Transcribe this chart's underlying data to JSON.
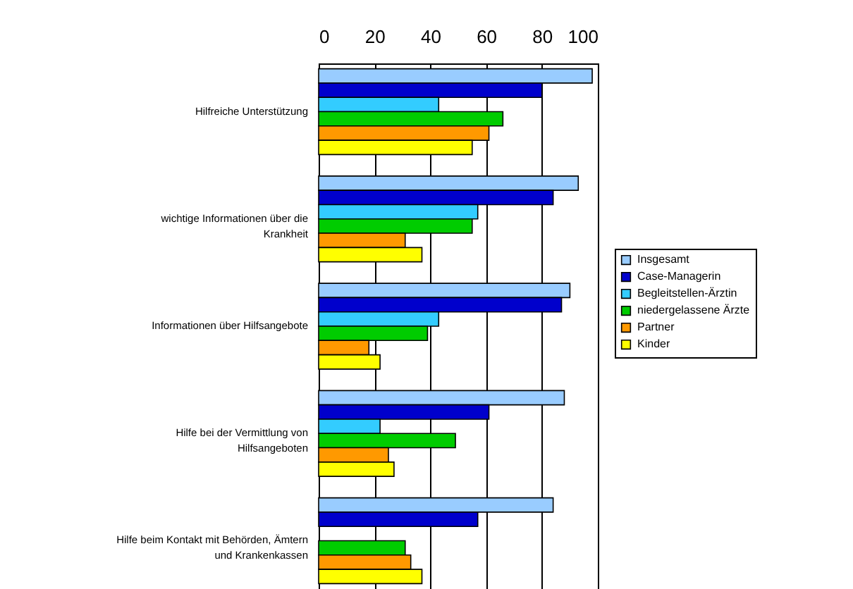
{
  "chart_data": {
    "type": "bar",
    "orientation": "horizontal",
    "categories": [
      "Hilfreiche Unterstützung",
      "wichtige Informationen über die Krankheit",
      "Informationen über Hilfsangebote",
      "Hilfe bei der Vermittlung von Hilfsangeboten",
      "Hilfe beim Kontakt mit Behörden, Ämtern und Krankenkassen"
    ],
    "series": [
      {
        "name": "Insgesamt",
        "color": "#99ccff",
        "values": [
          98,
          93,
          90,
          88,
          84
        ]
      },
      {
        "name": "Case-Managerin",
        "color": "#0000cc",
        "values": [
          80,
          84,
          87,
          61,
          57
        ]
      },
      {
        "name": "Begleitstellen-Ärztin",
        "color": "#33ccff",
        "values": [
          43,
          57,
          43,
          22,
          null
        ]
      },
      {
        "name": "niedergelassene Ärzte",
        "color": "#00cc00",
        "values": [
          66,
          55,
          39,
          49,
          31
        ]
      },
      {
        "name": "Partner",
        "color": "#ff9900",
        "values": [
          61,
          31,
          18,
          25,
          33
        ]
      },
      {
        "name": "Kinder",
        "color": "#ffff00",
        "values": [
          55,
          37,
          22,
          27,
          37
        ]
      }
    ],
    "xlim": [
      0,
      100
    ],
    "xticks": [
      0,
      20,
      40,
      60,
      80,
      100
    ],
    "grid": "x",
    "legend": "right"
  }
}
